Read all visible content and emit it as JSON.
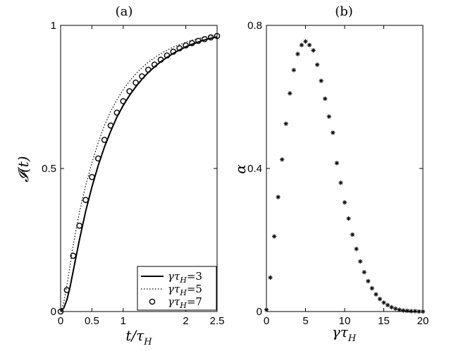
{
  "chart_data": [
    {
      "panel": "(a)",
      "type": "line",
      "title": "(a)",
      "xlabel": "t/τ_H",
      "xlabel_main": "t/τ",
      "xlabel_sub": "H",
      "ylabel": "𝓘(t)",
      "xlim": [
        0,
        2.5
      ],
      "ylim": [
        0,
        1
      ],
      "xticks": [
        0,
        0.5,
        1,
        2,
        2.5
      ],
      "xtick_labels": [
        "0",
        "0.5",
        "1",
        "2",
        "2.5"
      ],
      "yticks": [
        0,
        0.5,
        1
      ],
      "ytick_labels": [
        "0",
        "0.5",
        "1"
      ],
      "legend_position": "bottom-right",
      "series": [
        {
          "name": "γτ_H=3",
          "legend_main": "γτ",
          "legend_sub": "H",
          "legend_tail": "=3",
          "style": "solid",
          "x": [
            0,
            0.05,
            0.1,
            0.15,
            0.2,
            0.25,
            0.3,
            0.35,
            0.4,
            0.5,
            0.6,
            0.7,
            0.8,
            0.9,
            1.0,
            1.1,
            1.2,
            1.3,
            1.4,
            1.5,
            1.6,
            1.7,
            1.8,
            1.9,
            2.0,
            2.1,
            2.2,
            2.3,
            2.4,
            2.5
          ],
          "y": [
            0,
            0.012,
            0.04,
            0.085,
            0.14,
            0.195,
            0.25,
            0.3,
            0.35,
            0.435,
            0.51,
            0.575,
            0.63,
            0.68,
            0.72,
            0.755,
            0.785,
            0.812,
            0.835,
            0.855,
            0.873,
            0.888,
            0.902,
            0.914,
            0.925,
            0.934,
            0.942,
            0.949,
            0.955,
            0.96
          ]
        },
        {
          "name": "γτ_H=5",
          "legend_main": "γτ",
          "legend_sub": "H",
          "legend_tail": "=5",
          "style": "dotted",
          "x": [
            0,
            0.05,
            0.1,
            0.15,
            0.2,
            0.25,
            0.3,
            0.35,
            0.4,
            0.5,
            0.6,
            0.7,
            0.8,
            0.9,
            1.0,
            1.1,
            1.2,
            1.3,
            1.4,
            1.5,
            1.6,
            1.7,
            1.8,
            1.9,
            2.0,
            2.1,
            2.2,
            2.3,
            2.4,
            2.5
          ],
          "y": [
            0,
            0.03,
            0.09,
            0.16,
            0.23,
            0.29,
            0.345,
            0.395,
            0.44,
            0.52,
            0.59,
            0.65,
            0.7,
            0.74,
            0.775,
            0.805,
            0.83,
            0.852,
            0.871,
            0.887,
            0.901,
            0.913,
            0.924,
            0.933,
            0.941,
            0.948,
            0.954,
            0.959,
            0.963,
            0.967
          ]
        },
        {
          "name": "γτ_H=7",
          "legend_main": "γτ",
          "legend_sub": "H",
          "legend_tail": "=7",
          "style": "circles",
          "x": [
            0,
            0.1,
            0.2,
            0.3,
            0.4,
            0.5,
            0.6,
            0.7,
            0.8,
            0.9,
            1.0,
            1.1,
            1.2,
            1.3,
            1.4,
            1.5,
            1.6,
            1.7,
            1.8,
            1.9,
            2.0,
            2.1,
            2.2,
            2.3,
            2.4,
            2.5
          ],
          "y": [
            0.0,
            0.075,
            0.195,
            0.3,
            0.39,
            0.47,
            0.535,
            0.6,
            0.65,
            0.695,
            0.735,
            0.77,
            0.8,
            0.822,
            0.845,
            0.863,
            0.88,
            0.895,
            0.908,
            0.92,
            0.93,
            0.938,
            0.946,
            0.952,
            0.958,
            0.963
          ]
        }
      ]
    },
    {
      "panel": "(b)",
      "type": "scatter",
      "title": "(b)",
      "xlabel": "γτ_H",
      "xlabel_main": "γτ",
      "xlabel_sub": "H",
      "ylabel": "α",
      "xlim": [
        0,
        20
      ],
      "ylim": [
        0,
        0.8
      ],
      "xticks": [
        0,
        5,
        10,
        15,
        20
      ],
      "xtick_labels": [
        "0",
        "5",
        "10",
        "15",
        "20"
      ],
      "yticks": [
        0,
        0.4,
        0.8
      ],
      "ytick_labels": [
        "0",
        "0.4",
        "0.8"
      ],
      "marker": "asterisk",
      "x": [
        0.0,
        0.5,
        1.0,
        1.5,
        2.0,
        2.5,
        3.0,
        3.5,
        4.0,
        4.5,
        5.0,
        5.5,
        6.0,
        6.5,
        7.0,
        7.5,
        8.0,
        8.5,
        9.0,
        9.5,
        10.0,
        10.5,
        11.0,
        11.5,
        12.0,
        12.5,
        13.0,
        13.5,
        14.0,
        14.5,
        15.0,
        15.5,
        16.0,
        16.5,
        17.0,
        17.5,
        18.0,
        18.5,
        19.0,
        19.5,
        20.0
      ],
      "y": [
        0.005,
        0.095,
        0.21,
        0.32,
        0.425,
        0.525,
        0.61,
        0.675,
        0.72,
        0.745,
        0.755,
        0.745,
        0.73,
        0.69,
        0.645,
        0.595,
        0.545,
        0.5,
        0.415,
        0.36,
        0.305,
        0.26,
        0.215,
        0.175,
        0.14,
        0.11,
        0.085,
        0.065,
        0.048,
        0.035,
        0.025,
        0.018,
        0.012,
        0.008,
        0.005,
        0.003,
        0.002,
        0.001,
        0.001,
        0.0,
        0.0
      ]
    }
  ]
}
